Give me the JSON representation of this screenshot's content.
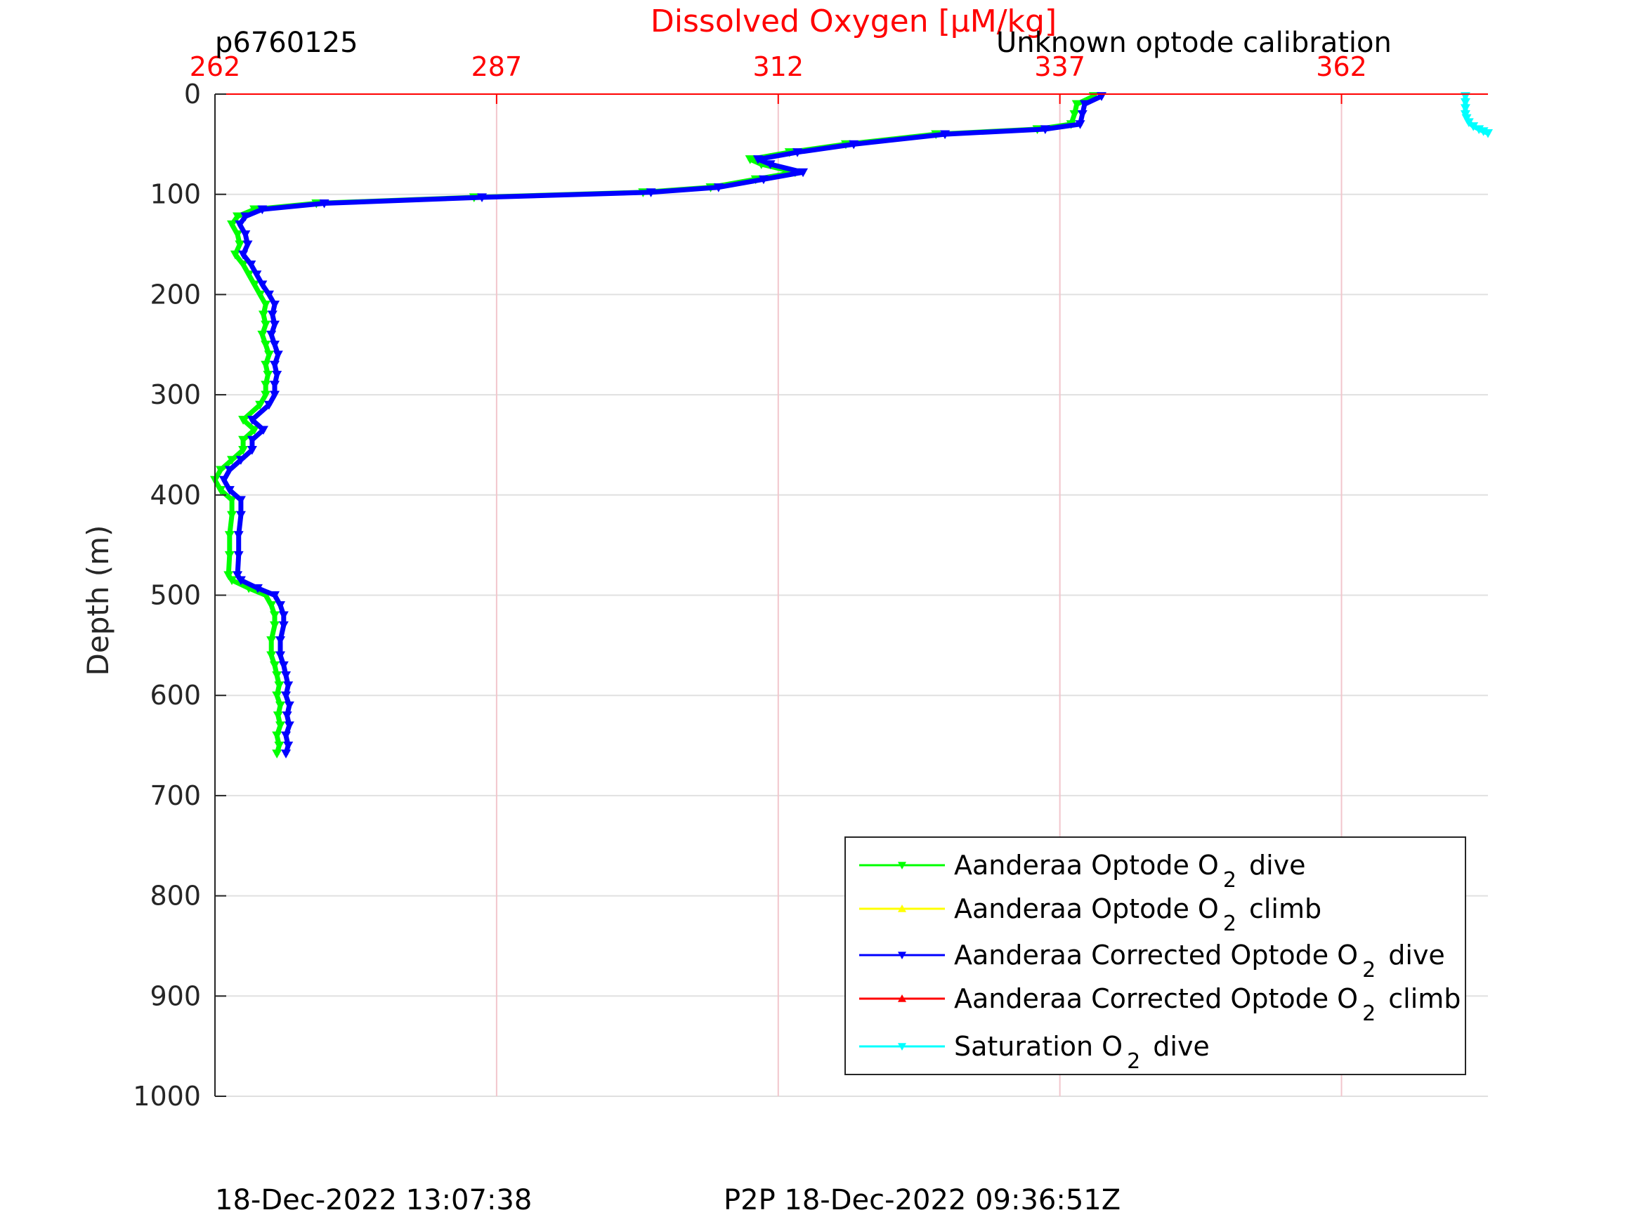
{
  "chart_data": {
    "type": "line",
    "title": "Dissolved Oxygen [μM/kg]",
    "corner_left": "p6760125",
    "corner_right": "Unknown optode calibration",
    "xlabel": "Dissolved Oxygen [μM/kg]",
    "ylabel": "Depth (m)",
    "xlim": [
      262,
      375
    ],
    "ylim": [
      0,
      1000
    ],
    "y_reversed": true,
    "x_axis_position": "top",
    "x_ticks": [
      262,
      287,
      312,
      337,
      362
    ],
    "y_ticks": [
      0,
      100,
      200,
      300,
      400,
      500,
      600,
      700,
      800,
      900,
      1000
    ],
    "grid": true,
    "legend_position": "bottom-right",
    "colors": {
      "x_axis": "#ff0000",
      "y_axis": "#262626",
      "grid_x": "#f2c6cc",
      "grid_y": "#e0e0e0"
    },
    "series": [
      {
        "name": "Aanderaa Optode O2 dive",
        "color": "#00ff00",
        "marker": "down-triangle",
        "points": [
          [
            340.0,
            2
          ],
          [
            338.5,
            10
          ],
          [
            338.3,
            20
          ],
          [
            338.0,
            30
          ],
          [
            335.0,
            35
          ],
          [
            326.0,
            40
          ],
          [
            318.0,
            50
          ],
          [
            313.0,
            58
          ],
          [
            309.5,
            65
          ],
          [
            310.5,
            70
          ],
          [
            313.5,
            78
          ],
          [
            310.0,
            85
          ],
          [
            306.0,
            93
          ],
          [
            300.0,
            98
          ],
          [
            285.0,
            103
          ],
          [
            271.0,
            109
          ],
          [
            265.5,
            115
          ],
          [
            264.0,
            122
          ],
          [
            263.5,
            130
          ],
          [
            264.0,
            140
          ],
          [
            264.2,
            150
          ],
          [
            263.8,
            160
          ],
          [
            264.5,
            170
          ],
          [
            265.0,
            180
          ],
          [
            265.5,
            190
          ],
          [
            266.0,
            200
          ],
          [
            266.5,
            210
          ],
          [
            266.3,
            220
          ],
          [
            266.5,
            230
          ],
          [
            266.2,
            240
          ],
          [
            266.5,
            250
          ],
          [
            266.8,
            260
          ],
          [
            266.5,
            270
          ],
          [
            266.7,
            280
          ],
          [
            266.5,
            290
          ],
          [
            266.5,
            300
          ],
          [
            266.0,
            310
          ],
          [
            264.5,
            325
          ],
          [
            265.5,
            335
          ],
          [
            264.5,
            345
          ],
          [
            264.5,
            355
          ],
          [
            263.5,
            365
          ],
          [
            262.5,
            375
          ],
          [
            262.0,
            385
          ],
          [
            262.5,
            395
          ],
          [
            263.5,
            405
          ],
          [
            263.5,
            420
          ],
          [
            263.3,
            440
          ],
          [
            263.3,
            460
          ],
          [
            263.2,
            480
          ],
          [
            263.5,
            485
          ],
          [
            265.0,
            493
          ],
          [
            266.5,
            500
          ],
          [
            267.0,
            510
          ],
          [
            267.3,
            520
          ],
          [
            267.3,
            530
          ],
          [
            267.0,
            545
          ],
          [
            267.0,
            560
          ],
          [
            267.3,
            570
          ],
          [
            267.5,
            580
          ],
          [
            267.7,
            590
          ],
          [
            267.5,
            600
          ],
          [
            267.8,
            610
          ],
          [
            267.6,
            620
          ],
          [
            267.8,
            630
          ],
          [
            267.5,
            640
          ],
          [
            267.7,
            650
          ],
          [
            267.5,
            658
          ]
        ]
      },
      {
        "name": "Aanderaa Optode O2 climb",
        "color": "#ffff00",
        "marker": "up-triangle",
        "points": []
      },
      {
        "name": "Aanderaa Corrected Optode O2 dive",
        "color": "#0000ff",
        "marker": "down-triangle",
        "points": [
          [
            340.7,
            2
          ],
          [
            339.2,
            10
          ],
          [
            339.0,
            20
          ],
          [
            338.8,
            30
          ],
          [
            335.7,
            35
          ],
          [
            326.8,
            40
          ],
          [
            318.7,
            50
          ],
          [
            313.7,
            58
          ],
          [
            310.2,
            65
          ],
          [
            311.3,
            70
          ],
          [
            314.2,
            78
          ],
          [
            310.7,
            85
          ],
          [
            306.7,
            93
          ],
          [
            300.7,
            98
          ],
          [
            285.7,
            103
          ],
          [
            271.7,
            109
          ],
          [
            266.2,
            115
          ],
          [
            264.7,
            122
          ],
          [
            264.2,
            130
          ],
          [
            264.7,
            140
          ],
          [
            264.9,
            150
          ],
          [
            264.5,
            160
          ],
          [
            265.2,
            170
          ],
          [
            265.7,
            180
          ],
          [
            266.2,
            190
          ],
          [
            266.8,
            200
          ],
          [
            267.3,
            210
          ],
          [
            267.1,
            220
          ],
          [
            267.3,
            230
          ],
          [
            267.0,
            240
          ],
          [
            267.3,
            250
          ],
          [
            267.6,
            260
          ],
          [
            267.3,
            270
          ],
          [
            267.5,
            280
          ],
          [
            267.3,
            290
          ],
          [
            267.3,
            300
          ],
          [
            266.8,
            310
          ],
          [
            265.3,
            325
          ],
          [
            266.3,
            335
          ],
          [
            265.3,
            345
          ],
          [
            265.3,
            355
          ],
          [
            264.3,
            365
          ],
          [
            263.3,
            375
          ],
          [
            262.8,
            385
          ],
          [
            263.3,
            395
          ],
          [
            264.3,
            405
          ],
          [
            264.3,
            420
          ],
          [
            264.1,
            440
          ],
          [
            264.1,
            460
          ],
          [
            264.0,
            480
          ],
          [
            264.3,
            485
          ],
          [
            265.8,
            493
          ],
          [
            267.3,
            500
          ],
          [
            267.8,
            510
          ],
          [
            268.1,
            520
          ],
          [
            268.1,
            530
          ],
          [
            267.8,
            545
          ],
          [
            267.8,
            560
          ],
          [
            268.1,
            570
          ],
          [
            268.3,
            580
          ],
          [
            268.5,
            590
          ],
          [
            268.3,
            600
          ],
          [
            268.6,
            610
          ],
          [
            268.4,
            620
          ],
          [
            268.6,
            630
          ],
          [
            268.3,
            640
          ],
          [
            268.5,
            650
          ],
          [
            268.3,
            658
          ]
        ]
      },
      {
        "name": "Aanderaa Corrected Optode O2 climb",
        "color": "#ff0000",
        "marker": "up-triangle",
        "points": []
      },
      {
        "name": "Saturation O2 dive",
        "color": "#00ffff",
        "marker": "down-triangle",
        "points": [
          [
            373.0,
            2
          ],
          [
            373.0,
            8
          ],
          [
            373.0,
            14
          ],
          [
            373.0,
            20
          ],
          [
            373.1,
            24
          ],
          [
            373.3,
            28
          ],
          [
            373.7,
            32
          ],
          [
            374.2,
            35
          ],
          [
            374.6,
            37
          ],
          [
            375.0,
            39
          ]
        ]
      }
    ],
    "footer_left": "18-Dec-2022 13:07:38",
    "footer_center": "P2P 18-Dec-2022 09:36:51Z"
  }
}
